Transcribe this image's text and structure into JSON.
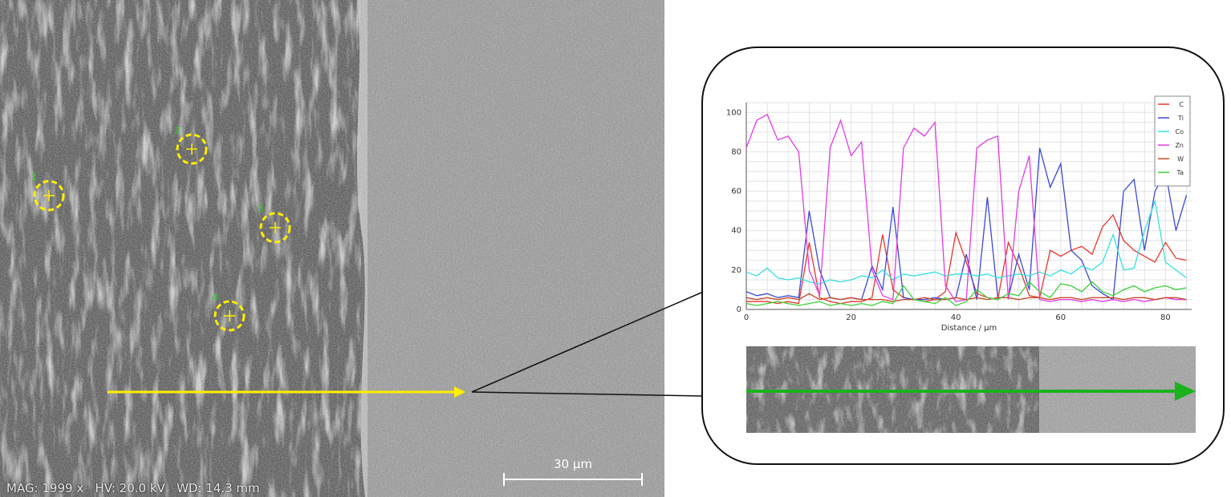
{
  "sem_image": {
    "status_text": "MAG: 1999 x   HV: 20.0 kV   WD: 14.3 mm",
    "scale_bar_label": "30 µm",
    "point_markers": [
      {
        "label": "1"
      },
      {
        "label": "2"
      },
      {
        "label": "3"
      },
      {
        "label": "4"
      }
    ]
  },
  "chart_data": {
    "type": "line",
    "title": "",
    "xlabel": "Distance / µm",
    "ylabel": "",
    "xlim": [
      0,
      85
    ],
    "ylim": [
      0,
      105
    ],
    "x_ticks": [
      0,
      20,
      40,
      60,
      80
    ],
    "y_ticks": [
      0,
      20,
      40,
      60,
      80,
      100
    ],
    "grid": true,
    "legend_position": "top-right",
    "x": [
      0,
      2,
      4,
      6,
      8,
      10,
      12,
      14,
      16,
      18,
      20,
      22,
      24,
      26,
      28,
      30,
      32,
      34,
      36,
      38,
      40,
      42,
      44,
      46,
      48,
      50,
      52,
      54,
      56,
      58,
      60,
      62,
      64,
      66,
      68,
      70,
      72,
      74,
      76,
      78,
      80,
      82,
      84
    ],
    "series": [
      {
        "name": "C",
        "color": "#e8352c",
        "values": [
          4,
          4,
          4,
          3,
          4,
          3,
          34,
          6,
          4,
          3,
          4,
          4,
          6,
          38,
          10,
          6,
          5,
          4,
          5,
          9,
          39,
          24,
          8,
          6,
          5,
          34,
          22,
          7,
          6,
          30,
          27,
          30,
          32,
          28,
          42,
          48,
          35,
          30,
          27,
          24,
          34,
          26,
          25
        ]
      },
      {
        "name": "Ti",
        "color": "#3a48d8",
        "values": [
          9,
          7,
          8,
          6,
          7,
          6,
          50,
          20,
          6,
          5,
          6,
          5,
          22,
          10,
          52,
          6,
          5,
          5,
          6,
          5,
          6,
          28,
          5,
          57,
          6,
          6,
          28,
          10,
          82,
          62,
          74,
          30,
          25,
          12,
          8,
          5,
          60,
          66,
          30,
          60,
          70,
          40,
          58
        ]
      },
      {
        "name": "Co",
        "color": "#35e0e0",
        "values": [
          19,
          17,
          21,
          16,
          15,
          16,
          14,
          13,
          15,
          14,
          15,
          17,
          16,
          20,
          15,
          18,
          17,
          18,
          19,
          17,
          18,
          18,
          17,
          18,
          16,
          17,
          18,
          17,
          19,
          17,
          20,
          18,
          22,
          20,
          24,
          38,
          20,
          21,
          40,
          55,
          24,
          20,
          16
        ]
      },
      {
        "name": "Zn",
        "color": "#e23ce2",
        "values": [
          82,
          96,
          99,
          86,
          88,
          80,
          20,
          7,
          82,
          96,
          78,
          85,
          20,
          7,
          5,
          82,
          92,
          88,
          95,
          12,
          4,
          5,
          82,
          86,
          88,
          5,
          60,
          78,
          5,
          4,
          5,
          5,
          4,
          5,
          4,
          5,
          4,
          5,
          4,
          5,
          6,
          5,
          5
        ]
      },
      {
        "name": "W",
        "color": "#c84a2a",
        "values": [
          6,
          5,
          6,
          5,
          6,
          5,
          8,
          5,
          6,
          5,
          6,
          5,
          5,
          5,
          4,
          5,
          5,
          6,
          5,
          5,
          6,
          5,
          6,
          5,
          6,
          6,
          5,
          6,
          6,
          5,
          6,
          6,
          5,
          6,
          6,
          6,
          5,
          6,
          6,
          5,
          6,
          6,
          5
        ]
      },
      {
        "name": "Ta",
        "color": "#3ad13a",
        "values": [
          3,
          2,
          3,
          4,
          3,
          2,
          3,
          4,
          2,
          3,
          2,
          3,
          2,
          4,
          3,
          12,
          5,
          4,
          3,
          6,
          2,
          4,
          10,
          6,
          5,
          8,
          7,
          14,
          9,
          6,
          13,
          12,
          9,
          14,
          9,
          7,
          10,
          12,
          9,
          11,
          12,
          10,
          11
        ]
      }
    ]
  }
}
